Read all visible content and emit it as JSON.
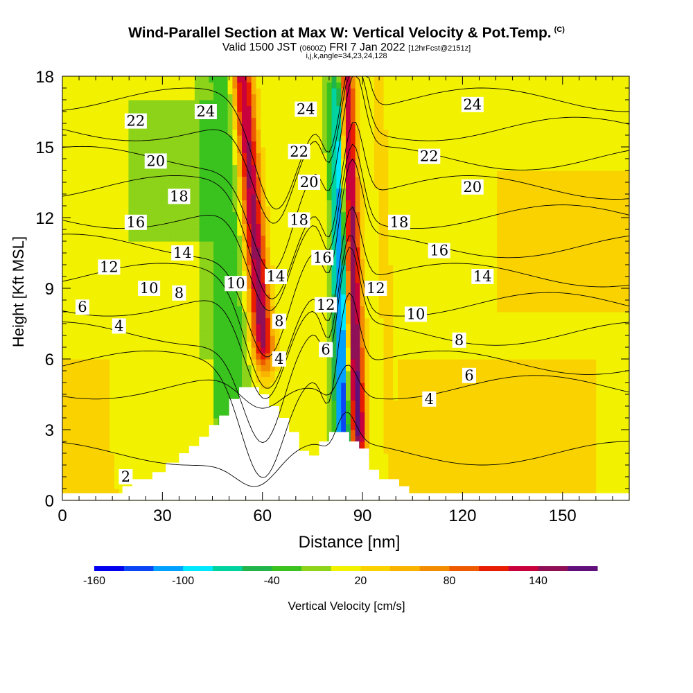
{
  "title": {
    "main": "Wind-Parallel Section at Max W: Vertical Velocity & Pot.Temp.",
    "copyright": "(C)",
    "valid": "Valid 1500 JST",
    "valid_utc": "(0600Z)",
    "date": "FRI 7 Jan 2022",
    "forecast": "[12hrFcst@2151z]",
    "meta": "i,j,k,angle=34,23,24,128"
  },
  "chart_data": {
    "type": "heatmap",
    "xlabel": "Distance [nm]",
    "ylabel": "Height [Kft MSL]",
    "xlim": [
      0,
      170
    ],
    "ylim": [
      0,
      18
    ],
    "x_ticks": [
      "0",
      "30",
      "60",
      "90",
      "120",
      "150"
    ],
    "y_ticks": [
      "0",
      "3",
      "6",
      "9",
      "12",
      "15",
      "18"
    ],
    "colorbar": {
      "label": "Vertical Velocity [cm/s]",
      "min": -160,
      "max": 180,
      "step": 20,
      "tick_labels": [
        "-160",
        "-100",
        "-40",
        "20",
        "80",
        "140"
      ],
      "colors": [
        "#0000ee",
        "#0a46f5",
        "#00a0ff",
        "#00e8ff",
        "#00d2a0",
        "#20b44a",
        "#3ac21e",
        "#8cd319",
        "#f2f200",
        "#f9d200",
        "#f9b400",
        "#f28c00",
        "#ee5a00",
        "#e81c00",
        "#c8003c",
        "#901058",
        "#60107a"
      ]
    },
    "terrain": [
      [
        0,
        0.3
      ],
      [
        18,
        0.3
      ],
      [
        18,
        0.6
      ],
      [
        21,
        0.6
      ],
      [
        21,
        0.9
      ],
      [
        27,
        0.9
      ],
      [
        27,
        1.2
      ],
      [
        31,
        1.2
      ],
      [
        31,
        1.6
      ],
      [
        35,
        1.6
      ],
      [
        35,
        2.0
      ],
      [
        38,
        2.0
      ],
      [
        38,
        2.3
      ],
      [
        41,
        2.3
      ],
      [
        41,
        2.7
      ],
      [
        44,
        2.7
      ],
      [
        44,
        3.2
      ],
      [
        47,
        3.2
      ],
      [
        47,
        3.6
      ],
      [
        50,
        3.6
      ],
      [
        50,
        4.3
      ],
      [
        53,
        4.3
      ],
      [
        53,
        4.8
      ],
      [
        59,
        4.8
      ],
      [
        59,
        4.5
      ],
      [
        62,
        4.5
      ],
      [
        62,
        4.0
      ],
      [
        65,
        4.0
      ],
      [
        65,
        3.5
      ],
      [
        68,
        3.5
      ],
      [
        68,
        2.9
      ],
      [
        71,
        2.9
      ],
      [
        71,
        2.1
      ],
      [
        74,
        2.1
      ],
      [
        74,
        1.9
      ],
      [
        77,
        1.9
      ],
      [
        77,
        2.5
      ],
      [
        80,
        2.5
      ],
      [
        80,
        2.9
      ],
      [
        86,
        2.9
      ],
      [
        86,
        2.5
      ],
      [
        89,
        2.5
      ],
      [
        89,
        2.2
      ],
      [
        92,
        2.2
      ],
      [
        92,
        1.3
      ],
      [
        95,
        1.3
      ],
      [
        95,
        0.9
      ],
      [
        101,
        0.9
      ],
      [
        101,
        0.6
      ],
      [
        104,
        0.6
      ],
      [
        104,
        0.3
      ],
      [
        170,
        0.3
      ]
    ],
    "vertical_velocity_features": [
      {
        "x": 61,
        "y_range": [
          7,
          18
        ],
        "w": 150,
        "band": "updraft"
      },
      {
        "x": 84,
        "y_range": [
          3,
          17
        ],
        "w": -150,
        "band": "downdraft"
      },
      {
        "x": 88,
        "y_range": [
          3,
          18
        ],
        "w": 170,
        "band": "updraft"
      },
      {
        "x": 50,
        "y_range": [
          3,
          18
        ],
        "w": -40,
        "band": "downdraft"
      },
      {
        "x": 98,
        "y_range": [
          0,
          18
        ],
        "w": 20,
        "band": "weak updraft"
      }
    ],
    "contours": {
      "field": "Potential Temperature (C)",
      "levels": [
        2,
        4,
        6,
        8,
        10,
        12,
        14,
        16,
        18,
        20,
        22,
        24
      ],
      "labels": [
        {
          "text": "2",
          "x": 19,
          "y": 1.0
        },
        {
          "text": "4",
          "x": 17,
          "y": 7.4
        },
        {
          "text": "6",
          "x": 6,
          "y": 8.2
        },
        {
          "text": "10",
          "x": 26,
          "y": 9.0
        },
        {
          "text": "8",
          "x": 35,
          "y": 8.8
        },
        {
          "text": "12",
          "x": 14,
          "y": 9.9
        },
        {
          "text": "14",
          "x": 36,
          "y": 10.5
        },
        {
          "text": "16",
          "x": 22,
          "y": 11.8
        },
        {
          "text": "18",
          "x": 35,
          "y": 12.9
        },
        {
          "text": "20",
          "x": 28,
          "y": 14.4
        },
        {
          "text": "22",
          "x": 22,
          "y": 16.1
        },
        {
          "text": "24",
          "x": 43,
          "y": 16.5
        },
        {
          "text": "10",
          "x": 52,
          "y": 9.2
        },
        {
          "text": "14",
          "x": 64,
          "y": 9.5
        },
        {
          "text": "8",
          "x": 65,
          "y": 7.6
        },
        {
          "text": "4",
          "x": 65,
          "y": 6.0
        },
        {
          "text": "18",
          "x": 71,
          "y": 11.9
        },
        {
          "text": "20",
          "x": 74,
          "y": 13.5
        },
        {
          "text": "22",
          "x": 71,
          "y": 14.8
        },
        {
          "text": "24",
          "x": 73,
          "y": 16.6
        },
        {
          "text": "16",
          "x": 78,
          "y": 10.3
        },
        {
          "text": "12",
          "x": 79,
          "y": 8.3
        },
        {
          "text": "6",
          "x": 79,
          "y": 6.4
        },
        {
          "text": "12",
          "x": 94,
          "y": 9.0
        },
        {
          "text": "18",
          "x": 101,
          "y": 11.8
        },
        {
          "text": "10",
          "x": 106,
          "y": 7.9
        },
        {
          "text": "16",
          "x": 113,
          "y": 10.6
        },
        {
          "text": "4",
          "x": 110,
          "y": 4.3
        },
        {
          "text": "8",
          "x": 119,
          "y": 6.8
        },
        {
          "text": "6",
          "x": 122,
          "y": 5.3
        },
        {
          "text": "14",
          "x": 126,
          "y": 9.5
        },
        {
          "text": "22",
          "x": 110,
          "y": 14.6
        },
        {
          "text": "20",
          "x": 123,
          "y": 13.3
        },
        {
          "text": "24",
          "x": 123,
          "y": 16.8
        }
      ]
    }
  }
}
